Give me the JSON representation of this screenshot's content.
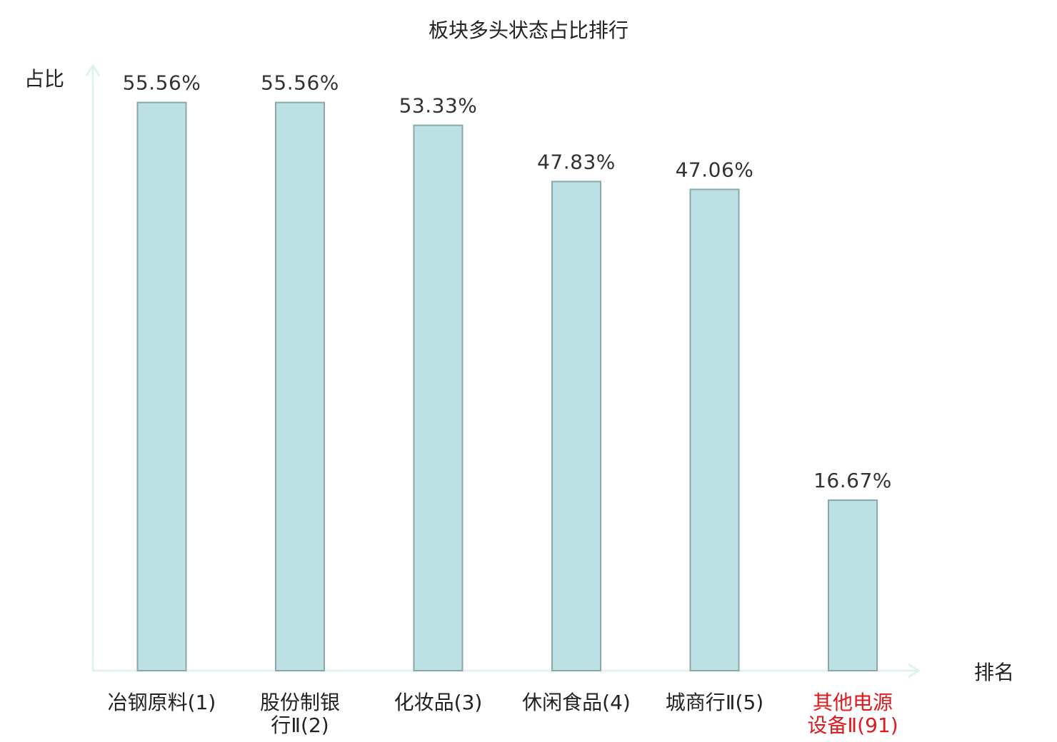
{
  "chart_data": {
    "type": "bar",
    "title": "板块多头状态占比排行",
    "xlabel": "排名",
    "ylabel": "占比",
    "categories": [
      [
        "冶钢原料(1)"
      ],
      [
        "股份制银",
        "行Ⅱ(2)"
      ],
      [
        "化妆品(3)"
      ],
      [
        "休闲食品(4)"
      ],
      [
        "城商行Ⅱ(5)"
      ],
      [
        "其他电源",
        "设备Ⅱ(91)"
      ]
    ],
    "values": [
      55.56,
      55.56,
      53.33,
      47.83,
      47.06,
      16.67
    ],
    "value_labels": [
      "55.56%",
      "55.56%",
      "53.33%",
      "47.83%",
      "47.06%",
      "16.67%"
    ],
    "highlight_index": 5,
    "ylim": [
      0,
      60
    ],
    "grid": false,
    "colors": {
      "bar_fill": "#bce0e3",
      "bar_stroke": "#8aa9ab",
      "axis": "#dff2ef",
      "text": "#222222",
      "value_label": "#333333",
      "highlight": "#e0191f"
    }
  }
}
